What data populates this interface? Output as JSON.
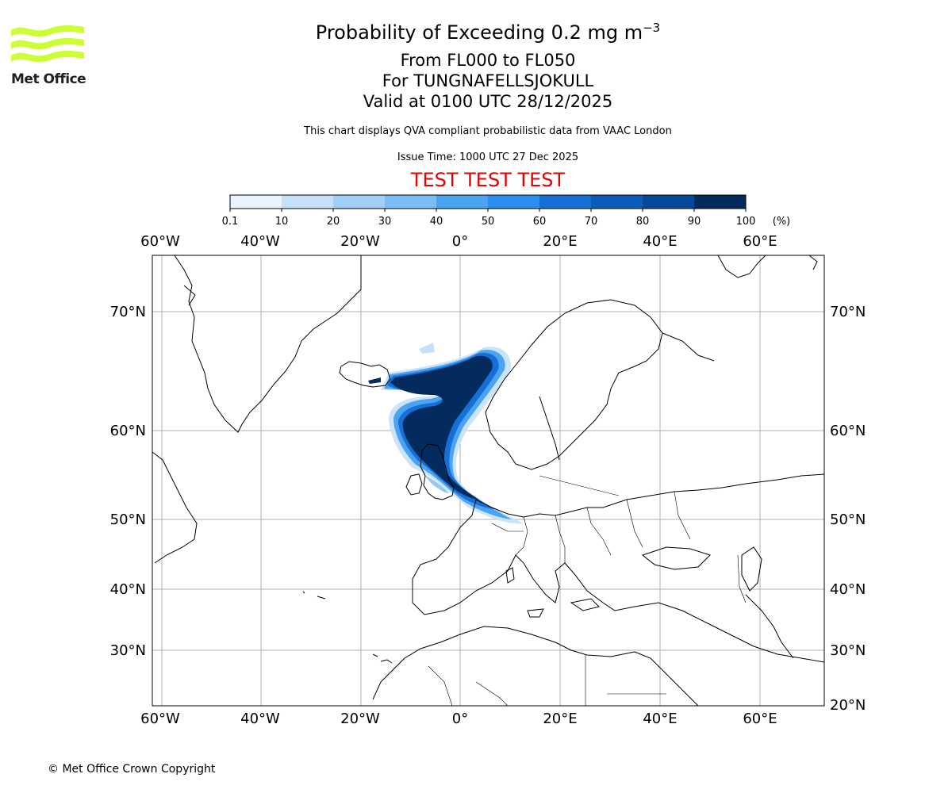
{
  "branding": {
    "logo_text": "Met Office",
    "logo_color": "#ccff33"
  },
  "title": {
    "main": "Probability of Exceeding 0.2 mg m",
    "main_superscript": "−3",
    "line2": "From FL000 to FL050",
    "line3": "For TUNGNAFELLSJOKULL",
    "line4": "Valid at 0100 UTC 28/12/2025"
  },
  "subtitle": "This chart displays QVA compliant probabilistic data from VAAC London",
  "issue_time": "Issue Time: 1000 UTC 27 Dec 2025",
  "test_banner": "TEST TEST TEST",
  "colorbar": {
    "ticks": [
      "0.1",
      "10",
      "20",
      "30",
      "40",
      "50",
      "60",
      "70",
      "80",
      "90",
      "100"
    ],
    "unit": "(%)",
    "colors": [
      "#e9f4fe",
      "#c5e1fa",
      "#a1cff7",
      "#7bbdf5",
      "#4aa4f2",
      "#2b8ff0",
      "#166fd6",
      "#0b5bb8",
      "#06489a",
      "#032b5e"
    ]
  },
  "map": {
    "lon_labels": [
      "60°W",
      "40°W",
      "20°W",
      "0°",
      "20°E",
      "40°E",
      "60°E"
    ],
    "lat_labels_left": [
      "70°N",
      "60°N",
      "50°N",
      "40°N",
      "30°N"
    ],
    "lat_labels_right": [
      "70°N",
      "60°N",
      "50°N",
      "40°N",
      "30°N",
      "20°N"
    ],
    "source_volcano_color": "#032b5e"
  },
  "copyright": "© Met Office Crown Copyright"
}
